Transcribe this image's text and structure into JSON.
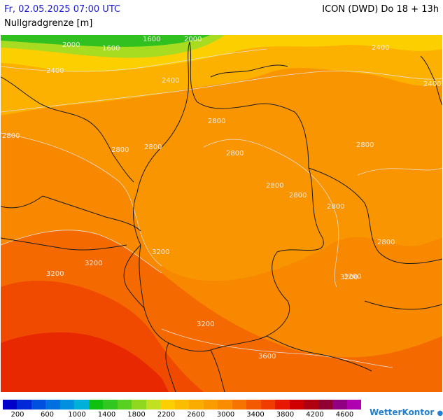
{
  "header": {
    "valid_time": "Fr, 02.05.2025 07:00 UTC",
    "model_run": "ICON (DWD) Do 18 + 13h",
    "parameter": "Nullgradgrenze [m]"
  },
  "map": {
    "contour_labels": [
      {
        "text": "1600"
      },
      {
        "text": "1600"
      },
      {
        "text": "2000"
      },
      {
        "text": "2000"
      },
      {
        "text": "2400"
      },
      {
        "text": "2400"
      },
      {
        "text": "2400"
      },
      {
        "text": "2400"
      },
      {
        "text": "2800"
      },
      {
        "text": "2800"
      },
      {
        "text": "2800"
      },
      {
        "text": "2800"
      },
      {
        "text": "2800"
      },
      {
        "text": "2800"
      },
      {
        "text": "2800"
      },
      {
        "text": "2800"
      },
      {
        "text": "2800"
      },
      {
        "text": "2800"
      },
      {
        "text": "3200"
      },
      {
        "text": "3200"
      },
      {
        "text": "3200"
      },
      {
        "text": "3200"
      },
      {
        "text": "3200"
      },
      {
        "text": "3200"
      },
      {
        "text": "3600"
      }
    ],
    "colors": {
      "band_1600": "#30c020",
      "band_2000": "#a8dc20",
      "band_2200": "#fcd000",
      "band_2400": "#fcb000",
      "band_2600": "#fba000",
      "band_2800": "#f99500",
      "band_3000": "#f78800",
      "band_3200": "#f56a00",
      "band_3400": "#f04a00",
      "band_3600": "#e82800",
      "border": "#1a1a1a",
      "contour": "#e8e0d8"
    }
  },
  "legend": {
    "colors": [
      "#0000c8",
      "#0028d8",
      "#0050e0",
      "#0070e0",
      "#0090e0",
      "#00b0d8",
      "#10c010",
      "#30c820",
      "#58d020",
      "#90d820",
      "#c0e020",
      "#fcd000",
      "#fcbc00",
      "#fbac00",
      "#fa9c00",
      "#f98c00",
      "#f77400",
      "#f45800",
      "#f03c00",
      "#e81800",
      "#d00000",
      "#b00010",
      "#900030",
      "#900080",
      "#b000b0"
    ],
    "ticks": [
      "200",
      "600",
      "1000",
      "1400",
      "1800",
      "2200",
      "2600",
      "3000",
      "3400",
      "3800",
      "4200",
      "4600"
    ]
  },
  "brand": {
    "name": "WetterKontor"
  }
}
